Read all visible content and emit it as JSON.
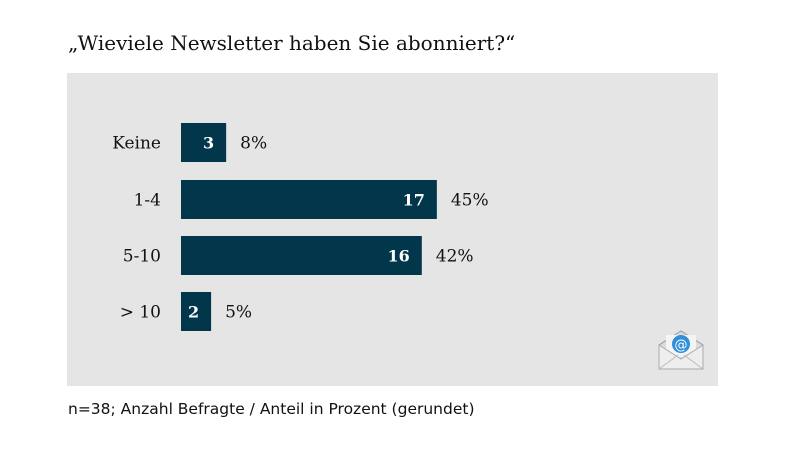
{
  "chart_data": {
    "type": "bar",
    "orientation": "horizontal",
    "title": "„Wieviele Newsletter haben Sie abonniert?“",
    "categories": [
      "Keine",
      "1-4",
      "5-10",
      "> 10"
    ],
    "values": [
      3,
      17,
      16,
      2
    ],
    "percent_labels": [
      "8%",
      "45%",
      "42%",
      "5%"
    ],
    "bar_color": "#02364a",
    "background": "#e5e5e5",
    "grid": false,
    "note": "n=38;  Anzahl Befragte / Anteil in Prozent (gerundet)"
  },
  "icon": "email-envelope-icon"
}
